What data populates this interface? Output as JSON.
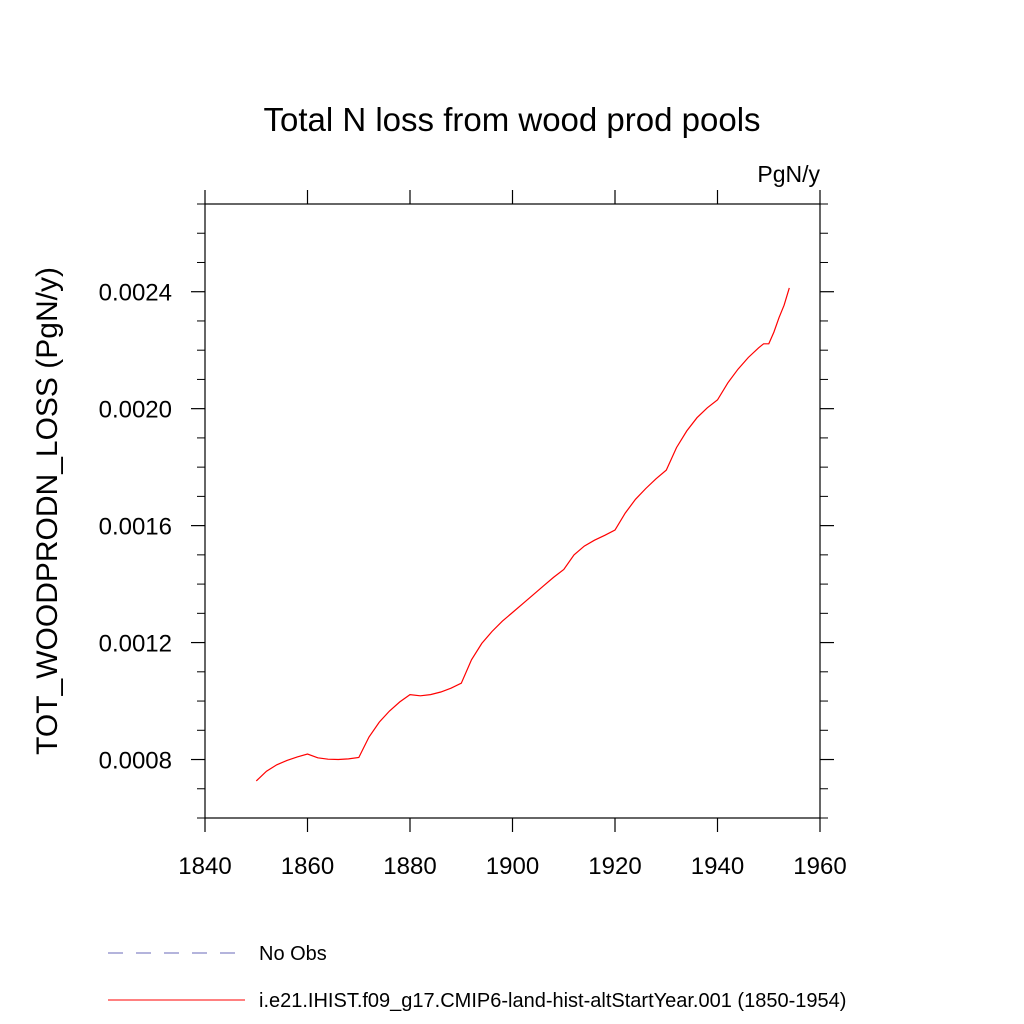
{
  "chart_data": {
    "type": "line",
    "title": "Total N loss from wood prod pools",
    "units": "PgN/y",
    "ylabel": "TOT_WOODPRODN_LOSS  (PgN/y)",
    "xlabel": "",
    "xlim": [
      1840,
      1960
    ],
    "ylim": [
      0.0006,
      0.0027
    ],
    "x_ticks": [
      1840,
      1860,
      1880,
      1900,
      1920,
      1940,
      1960
    ],
    "x_tick_labels": [
      "1840",
      "1860",
      "1880",
      "1900",
      "1920",
      "1940",
      "1960"
    ],
    "y_ticks": [
      0.0008,
      0.0012,
      0.0016,
      0.002,
      0.0024
    ],
    "y_tick_labels": [
      "0.0008",
      "0.0012",
      "0.0016",
      "0.0020",
      "0.0024"
    ],
    "grid": false,
    "legend_position": "bottom-left",
    "series": [
      {
        "name": "i.e21.IHIST.f09_g17.CMIP6-land-hist-altStartYear.001 (1850-1954)",
        "color": "#ff0000",
        "style": "solid",
        "x": [
          1850,
          1852,
          1854,
          1856,
          1858,
          1860,
          1862,
          1864,
          1866,
          1868,
          1870,
          1872,
          1874,
          1876,
          1878,
          1880,
          1882,
          1884,
          1886,
          1888,
          1890,
          1892,
          1894,
          1896,
          1898,
          1900,
          1902,
          1904,
          1906,
          1908,
          1910,
          1912,
          1914,
          1916,
          1918,
          1920,
          1922,
          1924,
          1926,
          1928,
          1930,
          1932,
          1934,
          1936,
          1938,
          1940,
          1942,
          1944,
          1946,
          1948,
          1949,
          1950,
          1951,
          1952,
          1953,
          1954
        ],
        "y": [
          0.000727,
          0.00076,
          0.000782,
          0.000797,
          0.000809,
          0.000819,
          0.000806,
          0.000801,
          0.0008,
          0.000802,
          0.000807,
          0.000877,
          0.000928,
          0.000966,
          0.000997,
          0.001022,
          0.001018,
          0.001022,
          0.001031,
          0.001044,
          0.001061,
          0.001141,
          0.001197,
          0.001238,
          0.001273,
          0.001303,
          0.001333,
          0.001363,
          0.001393,
          0.001423,
          0.00145,
          0.0015,
          0.00153,
          0.00155,
          0.001567,
          0.001585,
          0.001643,
          0.00169,
          0.001727,
          0.00176,
          0.00179,
          0.001867,
          0.001924,
          0.001969,
          0.002003,
          0.00203,
          0.002088,
          0.002135,
          0.002175,
          0.002208,
          0.002222,
          0.002222,
          0.002262,
          0.002311,
          0.002354,
          0.002413
        ]
      },
      {
        "name": "No Obs",
        "color": "#6a6ab8",
        "style": "dashed",
        "x": [],
        "y": []
      }
    ]
  }
}
